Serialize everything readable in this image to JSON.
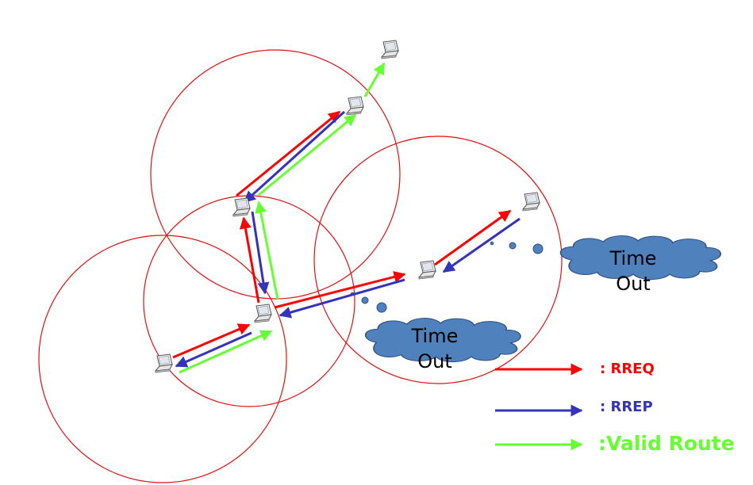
{
  "colors": {
    "range_circle": "#e01010",
    "rreq": "#ff0000",
    "rrep": "#3333bb",
    "valid_route": "#66ff33",
    "cloud_fill": "#4f81bd",
    "cloud_stroke": "#2f4f80"
  },
  "icons": {
    "node": "laptop-icon"
  },
  "clouds": {
    "right": {
      "line1": "Time",
      "line2": "Out"
    },
    "bottom": {
      "line1": "Time",
      "line2": "Out"
    }
  },
  "legend": {
    "rreq_label": ": RREQ",
    "rrep_label": ": RREP",
    "valid_label": ":Valid Route"
  }
}
